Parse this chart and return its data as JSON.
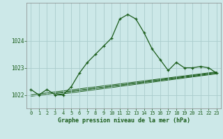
{
  "title": "Graphe pression niveau de la mer (hPa)",
  "background_color": "#cce8e8",
  "grid_color": "#aacccc",
  "line_color": "#1a5c1a",
  "xlim": [
    -0.5,
    23.5
  ],
  "ylim": [
    1021.5,
    1025.4
  ],
  "yticks": [
    1022,
    1023,
    1024
  ],
  "xticks": [
    0,
    1,
    2,
    3,
    4,
    5,
    6,
    7,
    8,
    9,
    10,
    11,
    12,
    13,
    14,
    15,
    16,
    17,
    18,
    19,
    20,
    21,
    22,
    23
  ],
  "series_main": {
    "x": [
      0,
      1,
      2,
      3,
      4,
      5,
      6,
      7,
      8,
      9,
      10,
      11,
      12,
      13,
      14,
      15,
      16,
      17,
      18,
      19,
      20,
      21,
      22,
      23
    ],
    "y": [
      1022.2,
      1022.0,
      1022.2,
      1022.0,
      1022.0,
      1022.3,
      1022.8,
      1023.2,
      1023.5,
      1023.8,
      1024.1,
      1024.8,
      1024.97,
      1024.8,
      1024.3,
      1023.7,
      1023.3,
      1022.9,
      1023.2,
      1023.0,
      1023.0,
      1023.05,
      1023.0,
      1022.8
    ]
  },
  "trend_lines": [
    {
      "x": [
        0,
        23
      ],
      "y": [
        1021.95,
        1022.8
      ]
    },
    {
      "x": [
        0,
        23
      ],
      "y": [
        1022.0,
        1022.85
      ]
    },
    {
      "x": [
        3,
        23
      ],
      "y": [
        1022.0,
        1022.78
      ]
    },
    {
      "x": [
        3,
        23
      ],
      "y": [
        1022.05,
        1022.83
      ]
    }
  ],
  "figsize": [
    3.2,
    2.0
  ],
  "dpi": 100
}
